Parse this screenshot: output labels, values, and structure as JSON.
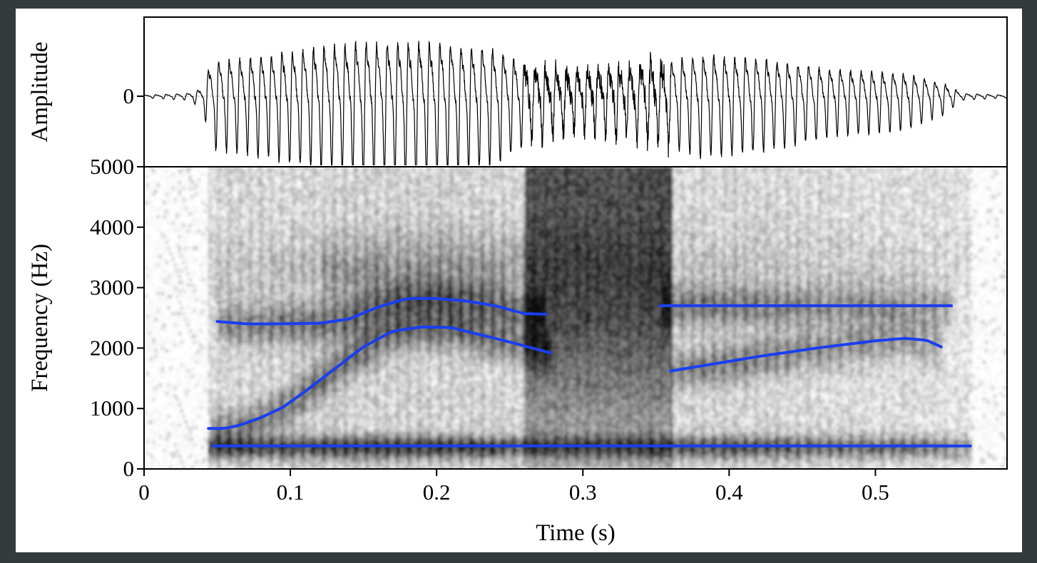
{
  "chart_data": [
    {
      "type": "line",
      "panel": "waveform",
      "ylabel": "Amplitude",
      "yticks": [
        0
      ],
      "ytick_labels": [
        "0"
      ],
      "xlim": [
        0,
        0.59
      ],
      "ylim": [
        -1,
        1
      ],
      "series": [
        {
          "values_note_free": true,
          "envelope": [
            {
              "x": 0.0,
              "a": 0.02
            },
            {
              "x": 0.03,
              "a": 0.05
            },
            {
              "x": 0.04,
              "a": 0.15
            },
            {
              "x": 0.046,
              "a": 0.65
            },
            {
              "x": 0.08,
              "a": 0.75
            },
            {
              "x": 0.12,
              "a": 0.9
            },
            {
              "x": 0.15,
              "a": 0.98
            },
            {
              "x": 0.2,
              "a": 1.0
            },
            {
              "x": 0.24,
              "a": 0.85
            },
            {
              "x": 0.265,
              "a": 0.55
            },
            {
              "x": 0.29,
              "a": 0.45
            },
            {
              "x": 0.33,
              "a": 0.5
            },
            {
              "x": 0.36,
              "a": 0.65
            },
            {
              "x": 0.38,
              "a": 0.75
            },
            {
              "x": 0.42,
              "a": 0.7
            },
            {
              "x": 0.47,
              "a": 0.5
            },
            {
              "x": 0.52,
              "a": 0.42
            },
            {
              "x": 0.545,
              "a": 0.25
            },
            {
              "x": 0.56,
              "a": 0.05
            },
            {
              "x": 0.59,
              "a": 0.02
            }
          ],
          "period_s": 0.0072
        }
      ]
    },
    {
      "type": "heatmap",
      "panel": "spectrogram",
      "xlabel": "Time (s)",
      "ylabel": "Frequency (Hz)",
      "xlim": [
        0,
        0.59
      ],
      "ylim": [
        0,
        5000
      ],
      "xticks": [
        0,
        0.1,
        0.2,
        0.3,
        0.4,
        0.5
      ],
      "xtick_labels": [
        "0",
        "0.1",
        "0.2",
        "0.3",
        "0.4",
        "0.5"
      ],
      "yticks": [
        0,
        1000,
        2000,
        3000,
        4000,
        5000
      ],
      "ytick_labels": [
        "0",
        "1000",
        "2000",
        "3000",
        "4000",
        "5000"
      ],
      "colormap": "grayscale",
      "overlay_color": "#1a3ff0",
      "formant_tracks": [
        {
          "x": [
            0.047,
            0.565
          ],
          "y": [
            380,
            380
          ]
        },
        {
          "x": [
            0.044,
            0.055,
            0.065,
            0.08,
            0.095,
            0.11,
            0.13,
            0.15,
            0.17,
            0.19,
            0.21,
            0.23,
            0.25,
            0.278
          ],
          "y": [
            670,
            670,
            720,
            850,
            1020,
            1280,
            1650,
            2020,
            2280,
            2350,
            2340,
            2220,
            2100,
            1920
          ]
        },
        {
          "x": [
            0.05,
            0.07,
            0.09,
            0.12,
            0.14,
            0.16,
            0.18,
            0.2,
            0.22,
            0.24,
            0.26,
            0.275
          ],
          "y": [
            2440,
            2400,
            2400,
            2410,
            2480,
            2680,
            2820,
            2820,
            2780,
            2700,
            2570,
            2560
          ]
        },
        {
          "x": [
            0.353,
            0.552
          ],
          "y": [
            2700,
            2700
          ]
        },
        {
          "x": [
            0.36,
            0.38,
            0.4,
            0.42,
            0.44,
            0.46,
            0.48,
            0.5,
            0.52,
            0.535,
            0.545
          ],
          "y": [
            1620,
            1700,
            1780,
            1860,
            1930,
            2000,
            2060,
            2120,
            2160,
            2130,
            2020
          ]
        }
      ]
    }
  ]
}
